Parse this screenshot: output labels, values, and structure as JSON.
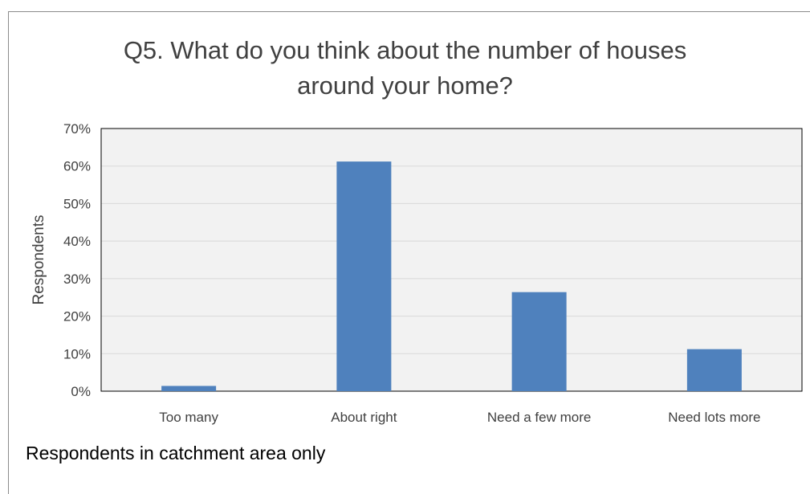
{
  "chart_data": {
    "type": "bar",
    "title_lines": [
      "Q5. What do you think about the number of houses",
      "around your home?"
    ],
    "categories": [
      "Too many",
      "About right",
      "Need a few more",
      "Need lots more"
    ],
    "values": [
      1.4,
      61.2,
      26.4,
      11.2
    ],
    "ylabel": "Respondents",
    "xlabel": "",
    "ylim": [
      0,
      70
    ],
    "yticks": [
      "0%",
      "10%",
      "20%",
      "30%",
      "40%",
      "50%",
      "60%",
      "70%"
    ],
    "grid": true,
    "legend": "none",
    "bar_color": "#4f81bd",
    "plot_background": "#f2f2f2"
  },
  "footnote": "Respondents in catchment area only"
}
